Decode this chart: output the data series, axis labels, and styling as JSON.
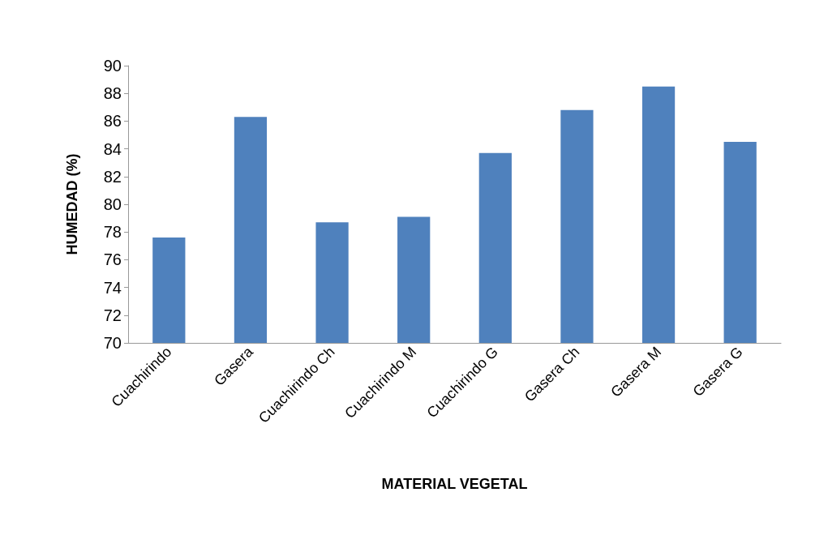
{
  "chart_data": {
    "type": "bar",
    "xlabel": "MATERIAL VEGETAL",
    "ylabel": "HUMEDAD (%)",
    "categories": [
      "Cuachirindo",
      "Gasera",
      "Cuachirindo Ch",
      "Cuachirindo M",
      "Cuachirindo G",
      "Gasera Ch",
      "Gasera M",
      "Gasera G"
    ],
    "values": [
      77.6,
      86.3,
      78.7,
      79.1,
      83.7,
      86.8,
      88.5,
      84.5
    ],
    "color": "#4f81bd",
    "ylim": [
      70,
      90
    ],
    "yticks": [
      70,
      72,
      74,
      76,
      78,
      80,
      82,
      84,
      86,
      88,
      90
    ],
    "grid": false
  }
}
